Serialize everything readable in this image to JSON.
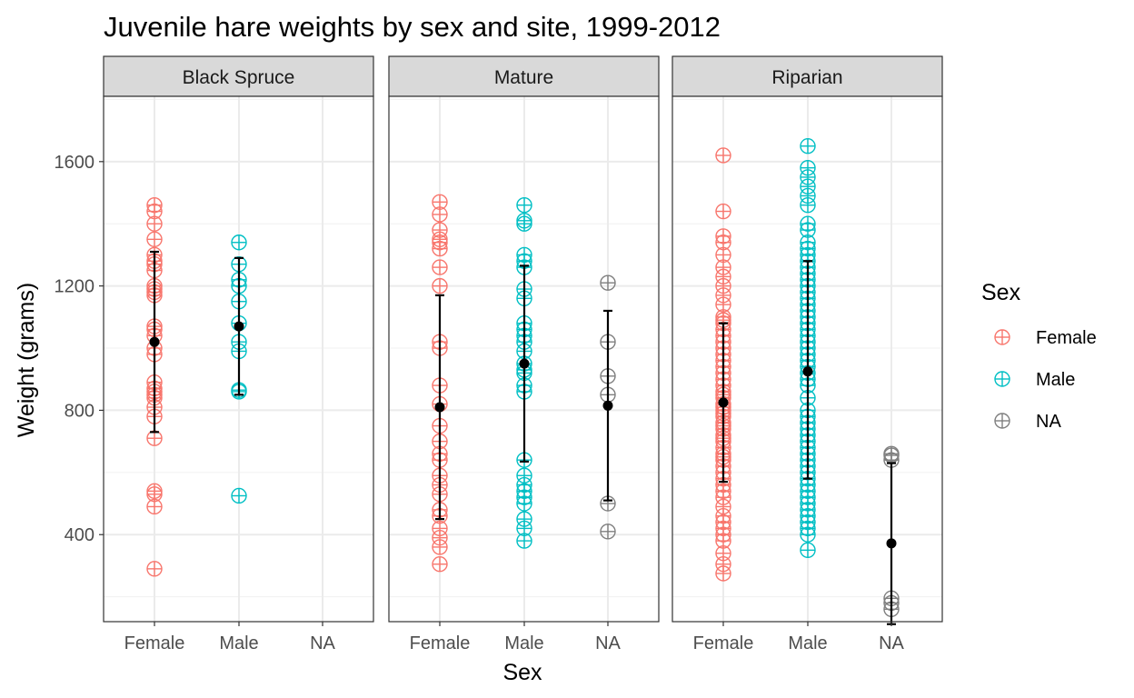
{
  "chart_data": {
    "type": "scatter",
    "title": "Juvenile hare weights by sex and site, 1999-2012",
    "xlabel": "Sex",
    "ylabel": "Weight (grams)",
    "categories": [
      "Female",
      "Male",
      "NA"
    ],
    "facets": [
      "Black Spruce",
      "Mature",
      "Riparian"
    ],
    "y_ticks": [
      400,
      800,
      1200,
      1600
    ],
    "ylim": [
      120,
      1810
    ],
    "grid": true,
    "legend": {
      "title": "Sex",
      "placement": "right",
      "entries": [
        {
          "label": "Female",
          "color": "#F8766D"
        },
        {
          "label": "Male",
          "color": "#00BFC4"
        },
        {
          "label": "NA",
          "color": "#7F7F7F"
        }
      ]
    },
    "panels": [
      {
        "site": "Black Spruce",
        "groups": [
          {
            "sex": "Female",
            "mean": 1020,
            "sd_low": 730,
            "sd_high": 1310,
            "values": [
              290,
              490,
              530,
              540,
              710,
              780,
              810,
              840,
              850,
              860,
              870,
              890,
              980,
              1000,
              1040,
              1060,
              1070,
              1170,
              1180,
              1190,
              1200,
              1250,
              1270,
              1280,
              1300,
              1350,
              1400,
              1440,
              1460
            ]
          },
          {
            "sex": "Male",
            "mean": 1070,
            "sd_low": 850,
            "sd_high": 1290,
            "values": [
              525,
              860,
              865,
              990,
              1020,
              1080,
              1150,
              1200,
              1220,
              1270,
              1340
            ]
          },
          {
            "sex": "NA",
            "values": []
          }
        ]
      },
      {
        "site": "Mature",
        "groups": [
          {
            "sex": "Female",
            "mean": 810,
            "sd_low": 450,
            "sd_high": 1170,
            "values": [
              305,
              360,
              390,
              420,
              460,
              480,
              530,
              560,
              590,
              640,
              660,
              700,
              750,
              820,
              880,
              1000,
              1020,
              1200,
              1260,
              1320,
              1340,
              1350,
              1380,
              1430,
              1470
            ]
          },
          {
            "sex": "Male",
            "mean": 950,
            "sd_low": 635,
            "sd_high": 1265,
            "values": [
              380,
              420,
              450,
              500,
              520,
              540,
              560,
              590,
              640,
              860,
              880,
              920,
              930,
              950,
              990,
              1020,
              1040,
              1060,
              1080,
              1160,
              1190,
              1260,
              1280,
              1300,
              1400,
              1410,
              1460
            ]
          },
          {
            "sex": "NA",
            "mean": 815,
            "sd_low": 510,
            "sd_high": 1120,
            "values": [
              410,
              500,
              850,
              910,
              1020,
              1210
            ]
          }
        ]
      },
      {
        "site": "Riparian",
        "groups": [
          {
            "sex": "Female",
            "mean": 825,
            "sd_low": 570,
            "sd_high": 1080,
            "values": [
              275,
              305,
              340,
              380,
              400,
              420,
              440,
              460,
              490,
              520,
              540,
              560,
              580,
              600,
              620,
              640,
              650,
              660,
              680,
              700,
              710,
              720,
              740,
              750,
              760,
              780,
              790,
              800,
              810,
              820,
              840,
              850,
              860,
              880,
              900,
              920,
              940,
              960,
              980,
              1000,
              1020,
              1040,
              1060,
              1080,
              1090,
              1100,
              1140,
              1170,
              1200,
              1230,
              1260,
              1300,
              1340,
              1360,
              1440,
              1620
            ]
          },
          {
            "sex": "Male",
            "mean": 925,
            "sd_low": 580,
            "sd_high": 1280,
            "values": [
              350,
              400,
              420,
              440,
              460,
              480,
              500,
              520,
              540,
              560,
              580,
              600,
              620,
              640,
              660,
              680,
              700,
              720,
              740,
              760,
              780,
              800,
              840,
              880,
              900,
              920,
              940,
              960,
              980,
              1000,
              1020,
              1040,
              1060,
              1080,
              1100,
              1120,
              1140,
              1160,
              1180,
              1200,
              1220,
              1240,
              1260,
              1280,
              1300,
              1320,
              1340,
              1380,
              1400,
              1460,
              1490,
              1520,
              1550,
              1580,
              1650
            ]
          },
          {
            "sex": "NA",
            "mean": 372,
            "sd_low": 112,
            "sd_high": 630,
            "values": [
              160,
              180,
              195,
              640,
              655,
              660
            ]
          }
        ]
      }
    ]
  }
}
